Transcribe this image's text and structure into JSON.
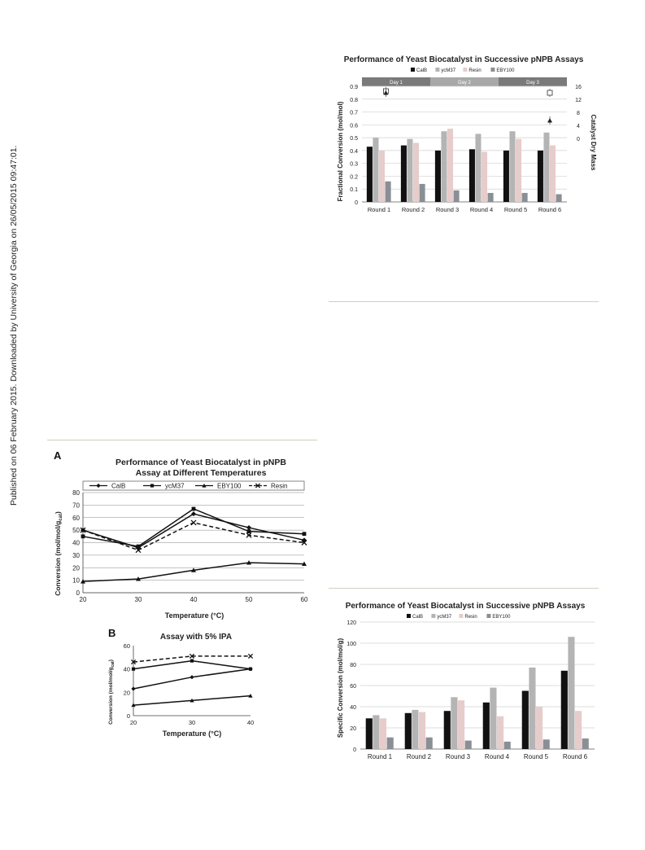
{
  "side_note": "Published on 06 February 2015. Downloaded by University of Georgia on 26/05/2015 09:47:01.",
  "charts": {
    "top_right": {
      "title": "Performance of Yeast Biocatalyst in Successive pNPB Assays",
      "legend": [
        "CalB",
        "ycM37",
        "Resin",
        "EBY100"
      ],
      "days": [
        "Day 1",
        "Day 2",
        "Day 3"
      ],
      "ylabel": "Fractional Conversion (mol/mol)",
      "y2label": "Catalyst Dry Mass",
      "yticks": [
        "0",
        "0.1",
        "0.2",
        "0.3",
        "0.4",
        "0.5",
        "0.6",
        "0.7",
        "0.8",
        "0.9"
      ],
      "y2ticks": [
        "16",
        "12",
        "8",
        "4",
        "0"
      ],
      "categories": [
        "Round 1",
        "Round 2",
        "Round 3",
        "Round 4",
        "Round 5",
        "Round 6"
      ]
    },
    "panel_a": {
      "letter": "A",
      "title_line1": "Performance of Yeast Biocatalyst in pNPB",
      "title_line2": "Assay at Different Temperatures",
      "legend": [
        "CalB",
        "ycM37",
        "EBY100",
        "Resin"
      ],
      "ylabel": "Conversion (mol/mol/g",
      "ylabel_sub": "cat",
      "ylabel_end": ")",
      "xlabel": "Temperature (°C)",
      "yticks": [
        "0",
        "10",
        "20",
        "30",
        "40",
        "50",
        "60",
        "70",
        "80"
      ],
      "xticks": [
        "20",
        "30",
        "40",
        "50",
        "60"
      ]
    },
    "panel_b": {
      "letter": "B",
      "title": "Assay with 5% IPA",
      "ylabel": "Conversion (mol/mol/g",
      "ylabel_sub": "cat",
      "ylabel_end": ")",
      "xlabel": "Temperature (°C)",
      "yticks": [
        "0",
        "20",
        "40",
        "60"
      ],
      "xticks": [
        "20",
        "30",
        "40"
      ]
    },
    "bottom_right": {
      "title": "Performance of Yeast Biocatalyst in Successive pNPB Assays",
      "legend": [
        "CalB",
        "ycM37",
        "Resin",
        "EBY100"
      ],
      "ylabel": "Specific Conversion (mol/mol/g)",
      "yticks": [
        "0",
        "20",
        "40",
        "60",
        "80",
        "100",
        "120"
      ],
      "categories": [
        "Round 1",
        "Round 2",
        "Round 3",
        "Round 4",
        "Round 5",
        "Round 6"
      ]
    }
  },
  "chart_data": [
    {
      "type": "bar",
      "categories": [
        "Round 1",
        "Round 2",
        "Round 3",
        "Round 4",
        "Round 5",
        "Round 6"
      ],
      "series": [
        {
          "name": "CalB",
          "values": [
            0.43,
            0.44,
            0.4,
            0.41,
            0.4,
            0.4
          ]
        },
        {
          "name": "ycM37",
          "values": [
            0.5,
            0.49,
            0.55,
            0.53,
            0.55,
            0.54
          ]
        },
        {
          "name": "Resin",
          "values": [
            0.4,
            0.46,
            0.57,
            0.39,
            0.49,
            0.44
          ]
        },
        {
          "name": "EBY100",
          "values": [
            0.16,
            0.14,
            0.09,
            0.07,
            0.07,
            0.06
          ]
        }
      ],
      "secondary_points": [
        {
          "day": "Day 1",
          "marker": "square",
          "value": 14.5
        },
        {
          "day": "Day 1",
          "marker": "triangle",
          "value": 14.0
        },
        {
          "day": "Day 3",
          "marker": "square",
          "value": 14.0
        },
        {
          "day": "Day 3",
          "marker": "triangle",
          "value": 5.5
        }
      ],
      "ylim": [
        0,
        0.9
      ],
      "y2lim": [
        0,
        16
      ],
      "colors": {
        "CalB": "#111111",
        "ycM37": "#b4b4b4",
        "Resin": "#e7cccc",
        "EBY100": "#8a8f96"
      }
    },
    {
      "type": "line",
      "x": [
        20,
        30,
        40,
        50,
        60
      ],
      "series": [
        {
          "name": "CalB",
          "values": [
            50,
            36,
            63,
            52,
            42
          ]
        },
        {
          "name": "ycM37",
          "values": [
            45,
            37,
            67,
            49,
            47
          ]
        },
        {
          "name": "EBY100",
          "values": [
            9,
            11,
            18,
            24,
            23
          ]
        },
        {
          "name": "Resin",
          "values": [
            50,
            34,
            56,
            46,
            40
          ]
        }
      ],
      "xlim": [
        20,
        60
      ],
      "ylim": [
        0,
        80
      ]
    },
    {
      "type": "line",
      "x": [
        20,
        30,
        40
      ],
      "series": [
        {
          "name": "CalB",
          "values": [
            23,
            33,
            40
          ]
        },
        {
          "name": "ycM37",
          "values": [
            40,
            47,
            40
          ]
        },
        {
          "name": "EBY100",
          "values": [
            9,
            13,
            17
          ]
        },
        {
          "name": "Resin",
          "values": [
            46,
            51,
            51
          ]
        }
      ],
      "xlim": [
        20,
        40
      ],
      "ylim": [
        0,
        60
      ]
    },
    {
      "type": "bar",
      "categories": [
        "Round 1",
        "Round 2",
        "Round 3",
        "Round 4",
        "Round 5",
        "Round 6"
      ],
      "series": [
        {
          "name": "CalB",
          "values": [
            29,
            34,
            36,
            44,
            55,
            74
          ]
        },
        {
          "name": "ycM37",
          "values": [
            32,
            37,
            49,
            58,
            77,
            106
          ]
        },
        {
          "name": "Resin",
          "values": [
            29,
            35,
            46,
            31,
            40,
            36
          ]
        },
        {
          "name": "EBY100",
          "values": [
            11,
            11,
            8,
            7,
            9,
            10
          ]
        }
      ],
      "ylim": [
        0,
        120
      ],
      "colors": {
        "CalB": "#111111",
        "ycM37": "#b4b4b4",
        "Resin": "#e7cccc",
        "EBY100": "#8a8f96"
      }
    }
  ]
}
